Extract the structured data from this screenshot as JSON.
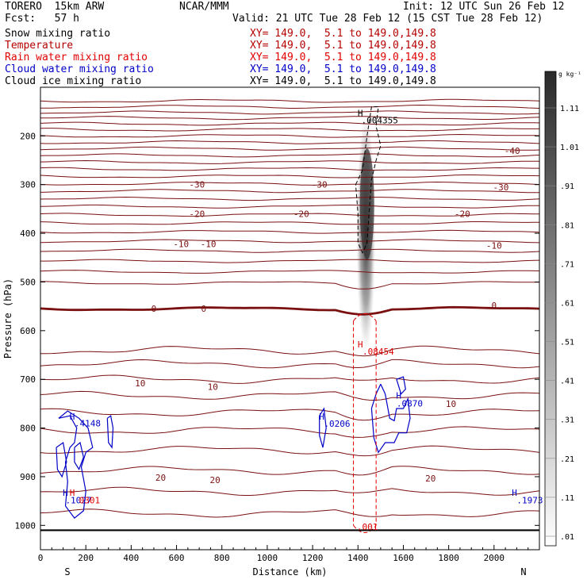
{
  "header": {
    "model": "TORERO  15km ARW",
    "org": "NCAR/MMM",
    "init": "Init: 12 UTC Sun 26 Feb 12",
    "fcst": "Fcst:   57 h",
    "valid": "Valid: 21 UTC Tue 28 Feb 12 (15 CST Tue 28 Feb 12)"
  },
  "fields": [
    {
      "name": "Snow mixing ratio",
      "xy": "",
      "color": "#000000"
    },
    {
      "name": "Temperature",
      "xy": "XY= 149.0,  5.1 to 149.0,149.8",
      "color": "#b40000"
    },
    {
      "name": "Rain water mixing ratio",
      "xy": "XY= 149.0,  5.1 to 149.0,149.8",
      "color": "#e00000"
    },
    {
      "name": "Cloud water mixing ratio",
      "xy": "XY= 149.0,  5.1 to 149.0,149.8",
      "color": "#0000c8"
    },
    {
      "name": "Cloud ice mixing ratio",
      "xy": "XY= 149.0,  5.1 to 149.0,149.8",
      "color": "#000000"
    }
  ],
  "header_xy_line1": "XY= 149.0,  5.1 to 149.0,149.8",
  "chart_data": {
    "type": "cross-section",
    "xlabel": "Distance (km)",
    "ylabel": "Pressure (hPa)",
    "xlim": [
      0,
      2200
    ],
    "ylim": [
      1050,
      100
    ],
    "x_ticks": [
      0,
      200,
      400,
      600,
      800,
      1000,
      1200,
      1400,
      1600,
      1800,
      2000
    ],
    "y_ticks": [
      200,
      300,
      400,
      500,
      600,
      700,
      800,
      900,
      1000
    ],
    "endpoints": {
      "left": "S",
      "right": "N"
    },
    "colorbar": {
      "unit": "g kg⁻¹",
      "labels": [
        "1.11",
        "1.01",
        ".91",
        ".81",
        ".71",
        ".61",
        ".51",
        ".41",
        ".31",
        ".21",
        ".11",
        ".01"
      ]
    },
    "temperature_labels": [
      {
        "text": "-40",
        "x": 2080,
        "p": 230
      },
      {
        "text": "-30",
        "x": 690,
        "p": 300
      },
      {
        "text": "-30",
        "x": 1230,
        "p": 300
      },
      {
        "text": "-30",
        "x": 2030,
        "p": 305
      },
      {
        "text": "-20",
        "x": 690,
        "p": 360
      },
      {
        "text": "-20",
        "x": 1150,
        "p": 360
      },
      {
        "text": "-20",
        "x": 1860,
        "p": 360
      },
      {
        "text": "-10",
        "x": 620,
        "p": 422
      },
      {
        "text": "-10",
        "x": 740,
        "p": 422
      },
      {
        "text": "-10",
        "x": 2000,
        "p": 425
      },
      {
        "text": "0",
        "x": 500,
        "p": 555
      },
      {
        "text": "0",
        "x": 720,
        "p": 555
      },
      {
        "text": "0",
        "x": 2000,
        "p": 548
      },
      {
        "text": "10",
        "x": 440,
        "p": 708
      },
      {
        "text": "10",
        "x": 760,
        "p": 715
      },
      {
        "text": "10",
        "x": 1810,
        "p": 750
      },
      {
        "text": "20",
        "x": 530,
        "p": 902
      },
      {
        "text": "20",
        "x": 770,
        "p": 907
      },
      {
        "text": "20",
        "x": 1720,
        "p": 903
      }
    ],
    "maxima_labels": [
      {
        "text": ".004355",
        "x": 1415,
        "p": 168,
        "color": "#000000"
      },
      {
        "text": ".08454",
        "x": 1420,
        "p": 643,
        "color": "#e00000"
      },
      {
        "text": ".001",
        "x": 1395,
        "p": 1003,
        "color": "#e00000"
      },
      {
        "text": ".4148",
        "x": 150,
        "p": 790,
        "color": "#0000c8"
      },
      {
        "text": ".0206",
        "x": 1250,
        "p": 791,
        "color": "#0000c8"
      },
      {
        "text": ".0870",
        "x": 1570,
        "p": 749,
        "color": "#0000c8"
      },
      {
        "text": ".1973",
        "x": 2100,
        "p": 948,
        "color": "#0000c8"
      },
      {
        "text": ".1027",
        "x": 110,
        "p": 948,
        "color": "#0000c8"
      },
      {
        "text": "0301",
        "x": 170,
        "p": 948,
        "color": "#e00000"
      }
    ],
    "h_markers": [
      {
        "text": "H",
        "x": 1410,
        "p": 153,
        "color": "#000000"
      },
      {
        "text": "H",
        "x": 1410,
        "p": 628,
        "color": "#e00000"
      },
      {
        "text": "H",
        "x": 140,
        "p": 776,
        "color": "#0000c8"
      },
      {
        "text": "H",
        "x": 1240,
        "p": 776,
        "color": "#0000c8"
      },
      {
        "text": "H",
        "x": 1580,
        "p": 733,
        "color": "#0000c8"
      },
      {
        "text": "H",
        "x": 2090,
        "p": 933,
        "color": "#0000c8"
      },
      {
        "text": "H",
        "x": 110,
        "p": 933,
        "color": "#0000c8"
      },
      {
        "text": "H",
        "x": 140,
        "p": 933,
        "color": "#e00000"
      }
    ]
  }
}
